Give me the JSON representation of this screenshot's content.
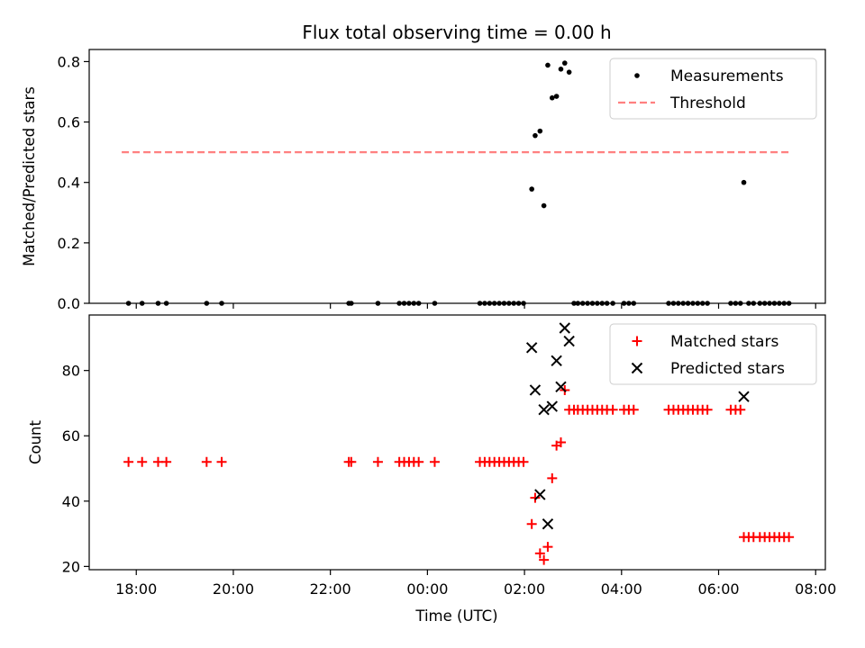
{
  "chart_data": {
    "type": "scatter",
    "title": "Flux total observing time = 0.00 h",
    "xlabel": "Time (UTC)",
    "x_tick_labels": [
      "18:00",
      "20:00",
      "22:00",
      "00:00",
      "02:00",
      "04:00",
      "06:00",
      "08:00"
    ],
    "x_ticks_hours": [
      18,
      20,
      22,
      24,
      26,
      28,
      30,
      32
    ],
    "xlim_hours": [
      17.03,
      32.2
    ],
    "panels": [
      {
        "name": "ratio",
        "ylabel": "Matched/Predicted stars",
        "ylim": [
          0,
          0.84
        ],
        "y_ticks": [
          0.0,
          0.2,
          0.4,
          0.6,
          0.8
        ],
        "y_tick_labels": [
          "0.0",
          "0.2",
          "0.4",
          "0.6",
          "0.8"
        ],
        "legend_position": "upper right",
        "series": [
          {
            "name": "Measurements",
            "kind": "scatter",
            "marker": "dot",
            "color": "#000000",
            "points": [
              [
                17.84,
                0
              ],
              [
                18.12,
                0
              ],
              [
                18.45,
                0
              ],
              [
                18.62,
                0
              ],
              [
                19.45,
                0
              ],
              [
                19.76,
                0
              ],
              [
                22.38,
                0
              ],
              [
                22.43,
                0
              ],
              [
                22.98,
                0
              ],
              [
                23.42,
                0
              ],
              [
                23.52,
                0
              ],
              [
                23.62,
                0
              ],
              [
                23.72,
                0
              ],
              [
                23.82,
                0
              ],
              [
                24.15,
                0
              ],
              [
                25.08,
                0
              ],
              [
                25.18,
                0
              ],
              [
                25.28,
                0
              ],
              [
                25.38,
                0
              ],
              [
                25.48,
                0
              ],
              [
                25.58,
                0
              ],
              [
                25.68,
                0
              ],
              [
                25.78,
                0
              ],
              [
                25.88,
                0
              ],
              [
                25.98,
                0
              ],
              [
                26.15,
                0.378
              ],
              [
                26.22,
                0.555
              ],
              [
                26.32,
                0.57
              ],
              [
                26.4,
                0.323
              ],
              [
                26.48,
                0.788
              ],
              [
                26.57,
                0.68
              ],
              [
                26.66,
                0.685
              ],
              [
                26.75,
                0.775
              ],
              [
                26.83,
                0.795
              ],
              [
                26.92,
                0.765
              ],
              [
                27.02,
                0
              ],
              [
                27.1,
                0
              ],
              [
                27.2,
                0
              ],
              [
                27.3,
                0
              ],
              [
                27.4,
                0
              ],
              [
                27.5,
                0
              ],
              [
                27.6,
                0
              ],
              [
                27.7,
                0
              ],
              [
                27.82,
                0
              ],
              [
                28.05,
                0
              ],
              [
                28.15,
                0
              ],
              [
                28.25,
                0
              ],
              [
                28.97,
                0
              ],
              [
                29.07,
                0
              ],
              [
                29.17,
                0
              ],
              [
                29.27,
                0
              ],
              [
                29.37,
                0
              ],
              [
                29.47,
                0
              ],
              [
                29.57,
                0
              ],
              [
                29.67,
                0
              ],
              [
                29.77,
                0
              ],
              [
                30.25,
                0
              ],
              [
                30.35,
                0
              ],
              [
                30.45,
                0
              ],
              [
                30.52,
                0.4
              ],
              [
                30.62,
                0
              ],
              [
                30.72,
                0
              ],
              [
                30.85,
                0
              ],
              [
                30.95,
                0
              ],
              [
                31.05,
                0
              ],
              [
                31.15,
                0
              ],
              [
                31.25,
                0
              ],
              [
                31.35,
                0
              ],
              [
                31.45,
                0
              ]
            ]
          },
          {
            "name": "Threshold",
            "kind": "line",
            "style": "dashed",
            "color": "#ff8080",
            "points": [
              [
                17.7,
                0.5
              ],
              [
                31.5,
                0.5
              ]
            ]
          }
        ]
      },
      {
        "name": "counts",
        "ylabel": "Count",
        "ylim": [
          19,
          97
        ],
        "y_ticks": [
          20,
          40,
          60,
          80
        ],
        "y_tick_labels": [
          "20",
          "40",
          "60",
          "80"
        ],
        "legend_position": "upper right",
        "series": [
          {
            "name": "Matched stars",
            "kind": "scatter",
            "marker": "plus",
            "color": "#ff0000",
            "points": [
              [
                17.84,
                52
              ],
              [
                18.12,
                52
              ],
              [
                18.45,
                52
              ],
              [
                18.62,
                52
              ],
              [
                19.45,
                52
              ],
              [
                19.76,
                52
              ],
              [
                22.38,
                52
              ],
              [
                22.43,
                52
              ],
              [
                22.98,
                52
              ],
              [
                23.42,
                52
              ],
              [
                23.52,
                52
              ],
              [
                23.62,
                52
              ],
              [
                23.72,
                52
              ],
              [
                23.82,
                52
              ],
              [
                24.15,
                52
              ],
              [
                25.08,
                52
              ],
              [
                25.18,
                52
              ],
              [
                25.28,
                52
              ],
              [
                25.38,
                52
              ],
              [
                25.48,
                52
              ],
              [
                25.58,
                52
              ],
              [
                25.68,
                52
              ],
              [
                25.78,
                52
              ],
              [
                25.88,
                52
              ],
              [
                25.98,
                52
              ],
              [
                26.15,
                33
              ],
              [
                26.22,
                41
              ],
              [
                26.32,
                24
              ],
              [
                26.4,
                22
              ],
              [
                26.48,
                26
              ],
              [
                26.57,
                47
              ],
              [
                26.66,
                57
              ],
              [
                26.75,
                58
              ],
              [
                26.83,
                74
              ],
              [
                26.92,
                68
              ],
              [
                27.02,
                68
              ],
              [
                27.1,
                68
              ],
              [
                27.2,
                68
              ],
              [
                27.3,
                68
              ],
              [
                27.4,
                68
              ],
              [
                27.5,
                68
              ],
              [
                27.6,
                68
              ],
              [
                27.7,
                68
              ],
              [
                27.82,
                68
              ],
              [
                28.05,
                68
              ],
              [
                28.15,
                68
              ],
              [
                28.25,
                68
              ],
              [
                28.97,
                68
              ],
              [
                29.07,
                68
              ],
              [
                29.17,
                68
              ],
              [
                29.27,
                68
              ],
              [
                29.37,
                68
              ],
              [
                29.47,
                68
              ],
              [
                29.57,
                68
              ],
              [
                29.67,
                68
              ],
              [
                29.77,
                68
              ],
              [
                30.25,
                68
              ],
              [
                30.35,
                68
              ],
              [
                30.45,
                68
              ],
              [
                30.52,
                29
              ],
              [
                30.62,
                29
              ],
              [
                30.72,
                29
              ],
              [
                30.85,
                29
              ],
              [
                30.95,
                29
              ],
              [
                31.05,
                29
              ],
              [
                31.15,
                29
              ],
              [
                31.25,
                29
              ],
              [
                31.35,
                29
              ],
              [
                31.45,
                29
              ]
            ]
          },
          {
            "name": "Predicted stars",
            "kind": "scatter",
            "marker": "x",
            "color": "#000000",
            "points": [
              [
                26.15,
                87
              ],
              [
                26.22,
                74
              ],
              [
                26.32,
                42
              ],
              [
                26.4,
                68
              ],
              [
                26.48,
                33
              ],
              [
                26.57,
                69
              ],
              [
                26.66,
                83
              ],
              [
                26.75,
                75
              ],
              [
                26.83,
                93
              ],
              [
                26.92,
                89
              ],
              [
                30.52,
                72
              ]
            ]
          }
        ]
      }
    ]
  }
}
